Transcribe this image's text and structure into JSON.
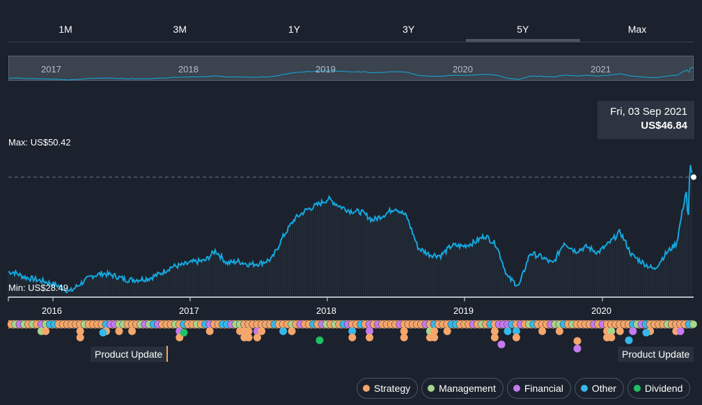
{
  "tabs": [
    {
      "label": "1M"
    },
    {
      "label": "3M"
    },
    {
      "label": "1Y"
    },
    {
      "label": "3Y"
    },
    {
      "label": "5Y",
      "active": true
    },
    {
      "label": "Max"
    }
  ],
  "navigator": {
    "year_labels": [
      "2017",
      "2018",
      "2019",
      "2020",
      "2021"
    ]
  },
  "chart_data": {
    "type": "line",
    "series": [
      {
        "x": [
          "2015-09",
          "2015-10",
          "2015-11",
          "2015-12",
          "2016-01",
          "2016-02",
          "2016-03",
          "2016-04",
          "2016-05",
          "2016-06",
          "2016-07",
          "2016-08",
          "2016-09",
          "2016-10",
          "2016-11",
          "2016-12",
          "2017-01",
          "2017-02",
          "2017-03",
          "2017-04",
          "2017-05",
          "2017-06",
          "2017-07",
          "2017-08",
          "2017-09",
          "2017-10",
          "2017-11",
          "2017-12",
          "2018-01",
          "2018-02",
          "2018-03",
          "2018-04",
          "2018-05",
          "2018-06",
          "2018-07",
          "2018-08",
          "2018-09",
          "2018-10",
          "2018-11",
          "2018-12",
          "2019-01",
          "2019-02",
          "2019-03",
          "2019-04",
          "2019-05",
          "2019-06",
          "2019-07",
          "2019-08",
          "2019-09",
          "2019-10",
          "2019-11",
          "2019-12",
          "2020-01",
          "2020-02",
          "2020-03",
          "2020-04",
          "2020-05",
          "2020-06",
          "2020-07",
          "2020-08",
          "2020-09"
        ],
        "values": [
          31.8,
          31.0,
          30.6,
          30.2,
          29.6,
          28.7,
          30.0,
          31.2,
          31.6,
          31.2,
          30.6,
          30.6,
          30.8,
          31.5,
          32.6,
          32.9,
          33.4,
          33.6,
          35.2,
          33.2,
          33.5,
          33.0,
          33.2,
          33.9,
          37.5,
          40.2,
          41.6,
          42.4,
          43.4,
          42.2,
          41.5,
          41.3,
          40.0,
          40.9,
          42.0,
          40.6,
          35.6,
          34.6,
          34.4,
          36.0,
          35.9,
          36.5,
          37.6,
          36.1,
          31.0,
          29.6,
          34.8,
          34.2,
          33.1,
          36.5,
          35.1,
          35.8,
          34.9,
          36.4,
          38.2,
          34.5,
          33.3,
          32.2,
          34.6,
          36.4,
          38.9
        ],
        "extra_tail": [
          {
            "x": "2020-09-10",
            "y": 44.8
          },
          {
            "x": "2020-09-20",
            "y": 48.9
          },
          {
            "x": "2020-09-30",
            "y": 46.8
          }
        ]
      }
    ],
    "x_tick_labels": [
      "2016",
      "2017",
      "2018",
      "2019",
      "2020"
    ],
    "y_range": [
      28.49,
      50.42
    ],
    "max_label": "Max: US$50.42",
    "min_label": "Min: US$28.49",
    "reference_line_value": 46.84,
    "grid": false,
    "legend_position": "bottom-right"
  },
  "tooltip": {
    "date": "Fri, 03 Sep 2021",
    "price": "US$46.84"
  },
  "event_labels": {
    "left": "Product Update",
    "right": "Product Update"
  },
  "legend": [
    {
      "label": "Strategy",
      "color": "#f5a66b"
    },
    {
      "label": "Management",
      "color": "#a7d58c"
    },
    {
      "label": "Financial",
      "color": "#c57af0"
    },
    {
      "label": "Other",
      "color": "#36b8ea"
    },
    {
      "label": "Dividend",
      "color": "#21c063"
    }
  ],
  "colors": {
    "line": "#14a8e0",
    "background": "#1b222d"
  }
}
